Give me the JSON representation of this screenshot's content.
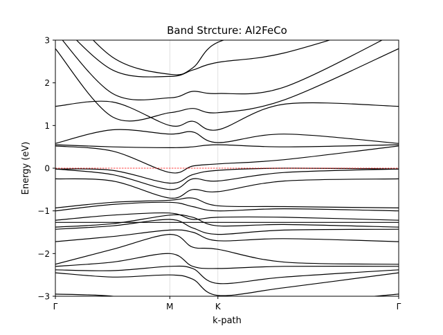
{
  "chart_data": {
    "type": "line",
    "title": "Band Strcture: Al2FeCo",
    "xlabel": "k-path",
    "ylabel": "Energy (eV)",
    "ylim": [
      -3,
      3
    ],
    "xlim": [
      0,
      3
    ],
    "grid": "vertical lines at high-symmetry points",
    "legend": "none",
    "yticks": [
      -3,
      -2,
      -1,
      0,
      1,
      2,
      3
    ],
    "ytick_labels": [
      "−3",
      "−2",
      "−1",
      "0",
      "1",
      "2",
      "3"
    ],
    "kpoints": [
      {
        "label": "Γ",
        "x": 0
      },
      {
        "label": "M",
        "x": 1.0
      },
      {
        "label": "K",
        "x": 1.42
      },
      {
        "label": "Γ",
        "x": 3.0
      }
    ],
    "fermi_level": 0,
    "colors": {
      "bands": "#000000",
      "fermi": "#ff0000",
      "grid": "#d9d9d9"
    },
    "x_samples": [
      0,
      0.5,
      1.0,
      1.2,
      1.42,
      2.0,
      3.0
    ],
    "series": [
      {
        "values": [
          -2.95,
          -3.0,
          -3.2,
          -3.3,
          -3.4,
          -3.2,
          -2.95
        ]
      },
      {
        "values": [
          -2.45,
          -2.55,
          -2.5,
          -2.6,
          -2.98,
          -2.8,
          -2.45
        ]
      },
      {
        "values": [
          -2.38,
          -2.4,
          -2.3,
          -2.35,
          -2.7,
          -2.55,
          -2.38
        ]
      },
      {
        "values": [
          -2.3,
          -2.2,
          -2.0,
          -2.3,
          -2.35,
          -2.3,
          -2.3
        ]
      },
      {
        "values": [
          -2.25,
          -1.9,
          -1.55,
          -1.85,
          -1.9,
          -2.2,
          -2.25
        ]
      },
      {
        "values": [
          -1.72,
          -1.6,
          -1.45,
          -1.5,
          -1.7,
          -1.65,
          -1.72
        ]
      },
      {
        "values": [
          -1.43,
          -1.35,
          -1.2,
          -1.4,
          -1.55,
          -1.45,
          -1.43
        ]
      },
      {
        "values": [
          -1.38,
          -1.3,
          -1.1,
          -1.15,
          -1.35,
          -1.32,
          -1.38
        ]
      },
      {
        "values": [
          -1.27,
          -1.27,
          -1.27,
          -1.27,
          -1.27,
          -1.27,
          -1.27
        ]
      },
      {
        "values": [
          -1.22,
          -1.1,
          -1.05,
          -1.2,
          -1.15,
          -1.15,
          -1.22
        ]
      },
      {
        "values": [
          -1.0,
          -0.85,
          -0.8,
          -0.9,
          -1.0,
          -0.95,
          -1.0
        ]
      },
      {
        "values": [
          -0.93,
          -0.8,
          -0.75,
          -0.7,
          -0.88,
          -0.9,
          -0.93
        ]
      },
      {
        "values": [
          -0.25,
          -0.3,
          -0.7,
          -0.5,
          -0.55,
          -0.3,
          -0.25
        ]
      },
      {
        "values": [
          -0.02,
          -0.15,
          -0.5,
          -0.25,
          -0.3,
          -0.1,
          -0.02
        ]
      },
      {
        "values": [
          -0.02,
          -0.05,
          -0.35,
          -0.15,
          -0.05,
          0.0,
          -0.02
        ]
      },
      {
        "values": [
          0.52,
          0.4,
          -0.1,
          0.05,
          0.1,
          0.2,
          0.52
        ]
      },
      {
        "values": [
          0.55,
          0.5,
          0.48,
          0.5,
          0.55,
          0.5,
          0.55
        ]
      },
      {
        "values": [
          0.58,
          0.9,
          0.8,
          0.85,
          0.6,
          0.8,
          0.58
        ]
      },
      {
        "values": [
          1.45,
          1.55,
          1.0,
          1.1,
          0.9,
          1.5,
          1.45
        ]
      },
      {
        "values": [
          2.8,
          1.2,
          1.3,
          1.4,
          1.3,
          1.6,
          2.8
        ]
      },
      {
        "values": [
          3.2,
          1.75,
          1.65,
          1.8,
          1.75,
          1.9,
          3.2
        ]
      },
      {
        "values": [
          3.5,
          2.3,
          2.15,
          2.3,
          2.48,
          2.7,
          3.5
        ]
      },
      {
        "values": [
          4.0,
          2.6,
          2.2,
          2.35,
          2.95,
          3.3,
          4.0
        ]
      }
    ]
  }
}
